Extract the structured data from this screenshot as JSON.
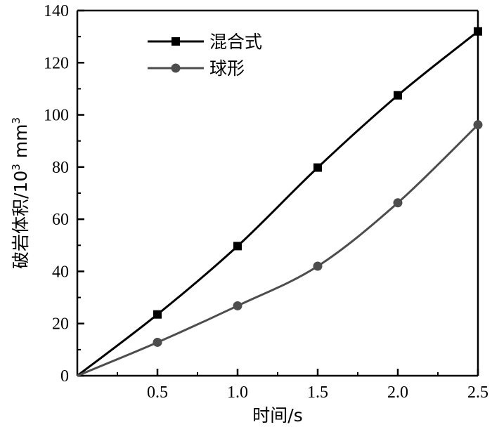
{
  "chart_data": {
    "type": "line",
    "title": "",
    "xlabel": "时间/s",
    "ylabel": "破岩体积/10³ mm³",
    "ylabel_main": "破岩体积/10",
    "ylabel_sup": "3",
    "ylabel_unit": " mm",
    "ylabel_unit_sup": "3",
    "xlim": [
      0,
      2.5
    ],
    "ylim": [
      0,
      140
    ],
    "xticks": [
      "0.5",
      "1.0",
      "1.5",
      "2.0",
      "2.5"
    ],
    "xtick_values": [
      0.5,
      1.0,
      1.5,
      2.0,
      2.5
    ],
    "yticks": [
      "0",
      "20",
      "40",
      "60",
      "80",
      "100",
      "120",
      "140"
    ],
    "ytick_values": [
      0,
      20,
      40,
      60,
      80,
      100,
      120,
      140
    ],
    "grid": false,
    "legend_position": "top-left",
    "series": [
      {
        "name": "混合式",
        "marker": "square",
        "color": "#000000",
        "x": [
          0,
          0.5,
          1.0,
          1.5,
          2.0,
          2.5
        ],
        "y": [
          0,
          23.5,
          49.7,
          79.8,
          107.5,
          132.0
        ]
      },
      {
        "name": "球形",
        "marker": "circle",
        "color": "#4d4d4d",
        "x": [
          0,
          0.5,
          1.0,
          1.5,
          2.0,
          2.5
        ],
        "y": [
          0,
          12.8,
          26.8,
          42.0,
          66.3,
          96.2
        ]
      }
    ]
  }
}
